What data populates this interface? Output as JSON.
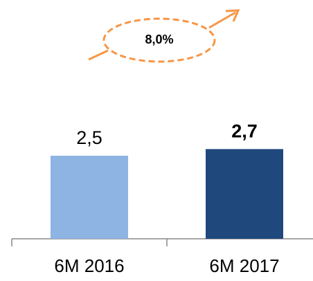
{
  "chart_data": {
    "type": "bar",
    "categories": [
      "6M 2016",
      "6M 2017"
    ],
    "values": [
      2.5,
      2.7
    ],
    "value_labels": [
      "2,5",
      "2,7"
    ],
    "colors": [
      "#8eb4e3",
      "#1f497d"
    ],
    "annotation": "8,0%"
  }
}
